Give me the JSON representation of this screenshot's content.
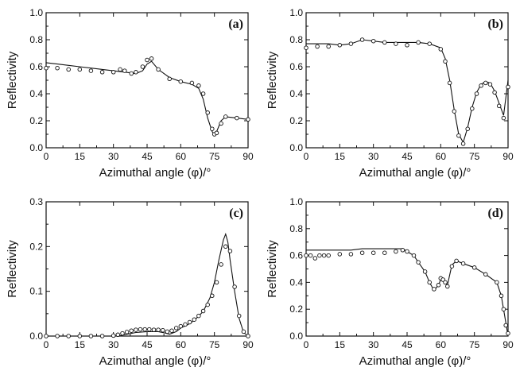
{
  "chart_data": [
    {
      "type": "line",
      "panel_label": "(a)",
      "xlabel": "Azimuthal angle (φ)/°",
      "ylabel": "Reflectivity",
      "xlim": [
        0,
        90
      ],
      "ylim": [
        0,
        1.0
      ],
      "xticks": [
        "0",
        "15",
        "30",
        "45",
        "60",
        "75",
        "90"
      ],
      "yticks": [
        "0.0",
        "0.2",
        "0.4",
        "0.6",
        "0.8",
        "1.0"
      ],
      "series": [
        {
          "style": "line",
          "x": [
            0,
            5,
            10,
            15,
            20,
            25,
            30,
            35,
            40,
            43,
            45,
            47,
            50,
            55,
            60,
            65,
            68,
            70,
            72,
            74,
            75,
            76,
            78,
            80,
            85,
            90
          ],
          "y": [
            0.63,
            0.62,
            0.61,
            0.6,
            0.59,
            0.58,
            0.57,
            0.56,
            0.55,
            0.57,
            0.62,
            0.64,
            0.58,
            0.52,
            0.49,
            0.47,
            0.44,
            0.36,
            0.22,
            0.12,
            0.1,
            0.12,
            0.2,
            0.23,
            0.22,
            0.21
          ]
        },
        {
          "style": "markers",
          "x": [
            0,
            5,
            10,
            15,
            20,
            25,
            30,
            33,
            35,
            38,
            40,
            43,
            45,
            47,
            50,
            55,
            60,
            65,
            68,
            70,
            72,
            74,
            75,
            76,
            78,
            80,
            85,
            90
          ],
          "y": [
            0.59,
            0.59,
            0.58,
            0.58,
            0.57,
            0.56,
            0.56,
            0.58,
            0.57,
            0.55,
            0.56,
            0.6,
            0.65,
            0.66,
            0.58,
            0.51,
            0.49,
            0.48,
            0.46,
            0.4,
            0.26,
            0.14,
            0.1,
            0.11,
            0.18,
            0.23,
            0.22,
            0.21
          ]
        }
      ]
    },
    {
      "type": "line",
      "panel_label": "(b)",
      "xlabel": "Azimuthal angle (φ)/°",
      "ylabel": "Reflectivity",
      "xlim": [
        0,
        90
      ],
      "ylim": [
        0,
        1.0
      ],
      "xticks": [
        "0",
        "15",
        "30",
        "45",
        "60",
        "75",
        "90"
      ],
      "yticks": [
        "0.0",
        "0.2",
        "0.4",
        "0.6",
        "0.8",
        "1.0"
      ],
      "series": [
        {
          "style": "line",
          "x": [
            0,
            5,
            10,
            15,
            20,
            25,
            30,
            35,
            40,
            45,
            50,
            55,
            60,
            62,
            64,
            66,
            68,
            70,
            72,
            74,
            76,
            78,
            80,
            82,
            84,
            86,
            88,
            90
          ],
          "y": [
            0.77,
            0.77,
            0.77,
            0.76,
            0.77,
            0.8,
            0.79,
            0.78,
            0.78,
            0.78,
            0.78,
            0.77,
            0.74,
            0.66,
            0.5,
            0.28,
            0.1,
            0.04,
            0.15,
            0.3,
            0.41,
            0.47,
            0.49,
            0.48,
            0.42,
            0.33,
            0.24,
            0.5
          ]
        },
        {
          "style": "markers",
          "x": [
            0,
            5,
            10,
            15,
            20,
            25,
            30,
            35,
            40,
            45,
            50,
            55,
            60,
            62,
            64,
            66,
            68,
            70,
            72,
            74,
            76,
            78,
            80,
            82,
            84,
            86,
            88,
            90
          ],
          "y": [
            0.74,
            0.75,
            0.75,
            0.76,
            0.77,
            0.8,
            0.79,
            0.78,
            0.77,
            0.76,
            0.78,
            0.77,
            0.73,
            0.64,
            0.48,
            0.27,
            0.09,
            0.03,
            0.14,
            0.29,
            0.4,
            0.46,
            0.48,
            0.47,
            0.41,
            0.31,
            0.22,
            0.45
          ]
        }
      ]
    },
    {
      "type": "line",
      "panel_label": "(c)",
      "xlabel": "Azimuthal angle (φ)/°",
      "ylabel": "Reflectivity",
      "xlim": [
        0,
        90
      ],
      "ylim": [
        0,
        0.3
      ],
      "xticks": [
        "0",
        "15",
        "30",
        "45",
        "60",
        "75",
        "90"
      ],
      "yticks": [
        "0.0",
        "0.1",
        "0.2",
        "0.3"
      ],
      "series": [
        {
          "style": "line",
          "x": [
            0,
            10,
            20,
            30,
            33,
            36,
            40,
            45,
            50,
            53,
            55,
            58,
            60,
            63,
            66,
            70,
            73,
            75,
            77,
            79,
            80,
            81,
            82,
            84,
            86,
            88,
            90
          ],
          "y": [
            0.0,
            0.0,
            0.0,
            0.0,
            0.001,
            0.004,
            0.008,
            0.01,
            0.01,
            0.007,
            0.004,
            0.01,
            0.018,
            0.025,
            0.035,
            0.055,
            0.085,
            0.12,
            0.17,
            0.215,
            0.228,
            0.21,
            0.17,
            0.1,
            0.04,
            0.008,
            0.0
          ]
        },
        {
          "style": "markers",
          "x": [
            0,
            5,
            10,
            15,
            20,
            25,
            30,
            32,
            34,
            36,
            38,
            40,
            42,
            44,
            46,
            48,
            50,
            52,
            54,
            56,
            58,
            60,
            62,
            64,
            66,
            68,
            70,
            72,
            74,
            76,
            78,
            80,
            82,
            84,
            86,
            88,
            90
          ],
          "y": [
            0.0,
            0.0,
            0.0,
            0.0,
            0.0,
            0.0,
            0.001,
            0.003,
            0.006,
            0.009,
            0.012,
            0.014,
            0.015,
            0.015,
            0.015,
            0.014,
            0.014,
            0.013,
            0.01,
            0.012,
            0.018,
            0.022,
            0.026,
            0.031,
            0.037,
            0.045,
            0.056,
            0.07,
            0.09,
            0.12,
            0.16,
            0.2,
            0.19,
            0.11,
            0.045,
            0.01,
            0.0
          ]
        }
      ]
    },
    {
      "type": "line",
      "panel_label": "(d)",
      "xlabel": "Azimuthal angle (φ)/°",
      "ylabel": "Reflectivity",
      "xlim": [
        0,
        90
      ],
      "ylim": [
        0,
        1.0
      ],
      "xticks": [
        "0",
        "15",
        "30",
        "45",
        "60",
        "75",
        "90"
      ],
      "yticks": [
        "0.0",
        "0.2",
        "0.4",
        "0.6",
        "0.8",
        "1.0"
      ],
      "series": [
        {
          "style": "line",
          "x": [
            0,
            5,
            10,
            15,
            20,
            25,
            30,
            35,
            40,
            43,
            45,
            48,
            50,
            53,
            55,
            57,
            59,
            60,
            61,
            63,
            65,
            67,
            70,
            75,
            80,
            85,
            87,
            89,
            90
          ],
          "y": [
            0.64,
            0.64,
            0.64,
            0.64,
            0.64,
            0.65,
            0.65,
            0.65,
            0.65,
            0.65,
            0.63,
            0.6,
            0.55,
            0.48,
            0.4,
            0.34,
            0.38,
            0.42,
            0.41,
            0.38,
            0.53,
            0.56,
            0.54,
            0.51,
            0.46,
            0.4,
            0.3,
            0.1,
            0.0
          ]
        },
        {
          "style": "markers",
          "x": [
            0,
            2,
            4,
            6,
            8,
            10,
            15,
            20,
            25,
            30,
            35,
            40,
            43,
            45,
            48,
            50,
            53,
            55,
            57,
            59,
            60,
            61,
            62,
            63,
            65,
            67,
            70,
            75,
            80,
            85,
            87,
            88,
            89,
            90
          ],
          "y": [
            0.6,
            0.6,
            0.58,
            0.6,
            0.6,
            0.6,
            0.61,
            0.61,
            0.62,
            0.62,
            0.62,
            0.63,
            0.64,
            0.63,
            0.6,
            0.55,
            0.48,
            0.4,
            0.35,
            0.38,
            0.43,
            0.42,
            0.4,
            0.37,
            0.52,
            0.56,
            0.54,
            0.51,
            0.46,
            0.4,
            0.3,
            0.2,
            0.08,
            0.02
          ]
        }
      ]
    }
  ]
}
